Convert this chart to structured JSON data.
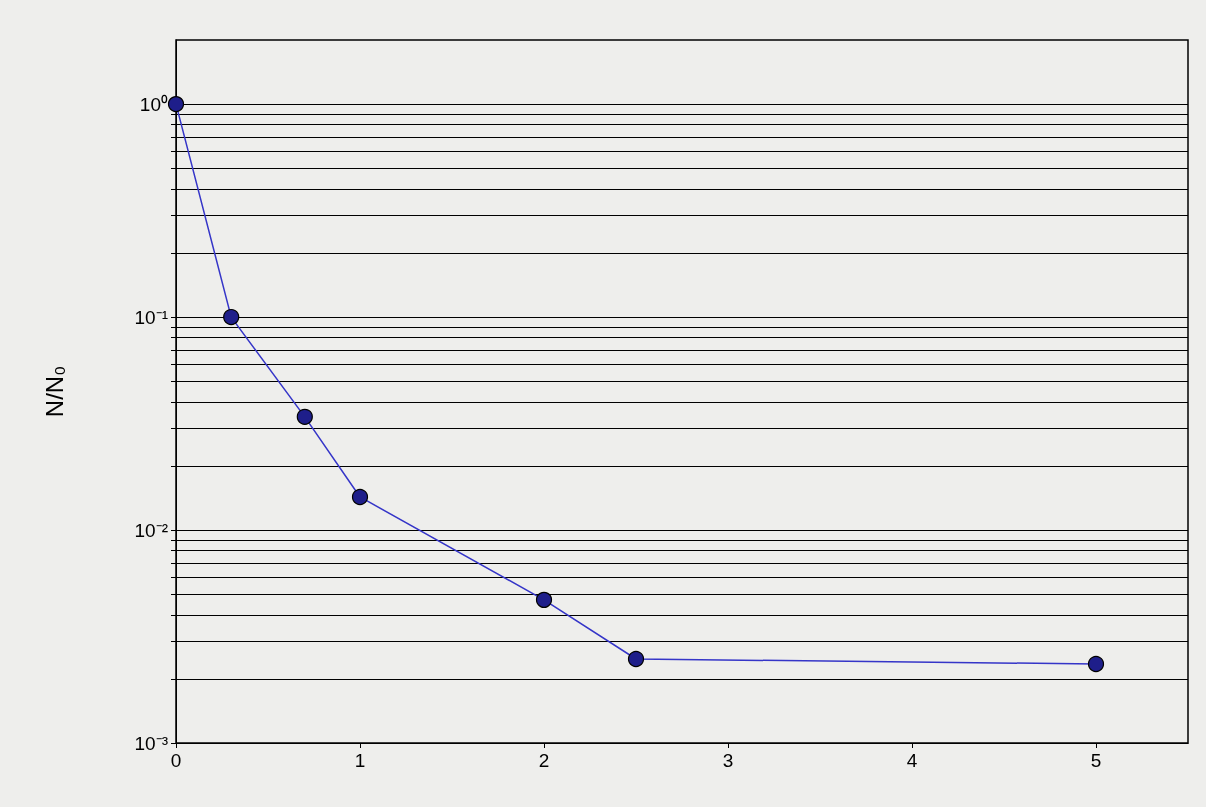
{
  "chart_data": {
    "type": "line",
    "ylabel": "N/N₀",
    "x": [
      0,
      0.3,
      0.7,
      1,
      2,
      2.5,
      5
    ],
    "series": [
      {
        "color": "#3535c8",
        "values": [
          1,
          0.1,
          0.034,
          0.0143,
          0.0047,
          0.00248,
          0.00235
        ]
      }
    ],
    "xlim": [
      0,
      5.5
    ],
    "xticks": [
      0,
      1,
      2,
      3,
      4,
      5
    ],
    "ylim": [
      0.001,
      2
    ],
    "log": "y",
    "yticks": [
      {
        "value": 0.001,
        "label": "10⁻³"
      },
      {
        "value": 0.002,
        "label": null
      },
      {
        "value": 0.003,
        "label": null
      },
      {
        "value": 0.004,
        "label": null
      },
      {
        "value": 0.005,
        "label": null
      },
      {
        "value": 0.006,
        "label": null
      },
      {
        "value": 0.007,
        "label": null
      },
      {
        "value": 0.008,
        "label": null
      },
      {
        "value": 0.009,
        "label": null
      },
      {
        "value": 0.01,
        "label": "10⁻²"
      },
      {
        "value": 0.02,
        "label": null
      },
      {
        "value": 0.03,
        "label": null
      },
      {
        "value": 0.04,
        "label": null
      },
      {
        "value": 0.05,
        "label": null
      },
      {
        "value": 0.06,
        "label": null
      },
      {
        "value": 0.07,
        "label": null
      },
      {
        "value": 0.08,
        "label": null
      },
      {
        "value": 0.09,
        "label": null
      },
      {
        "value": 0.1,
        "label": "10⁻¹"
      },
      {
        "value": 0.2,
        "label": null
      },
      {
        "value": 0.3,
        "label": null
      },
      {
        "value": 0.4,
        "label": null
      },
      {
        "value": 0.5,
        "label": null
      },
      {
        "value": 0.6,
        "label": null
      },
      {
        "value": 0.7,
        "label": null
      },
      {
        "value": 0.8,
        "label": null
      },
      {
        "value": 0.9,
        "label": null
      },
      {
        "value": 1,
        "label": "10⁰"
      }
    ],
    "grid": "y",
    "marker": "circle",
    "line_style": "solid"
  }
}
